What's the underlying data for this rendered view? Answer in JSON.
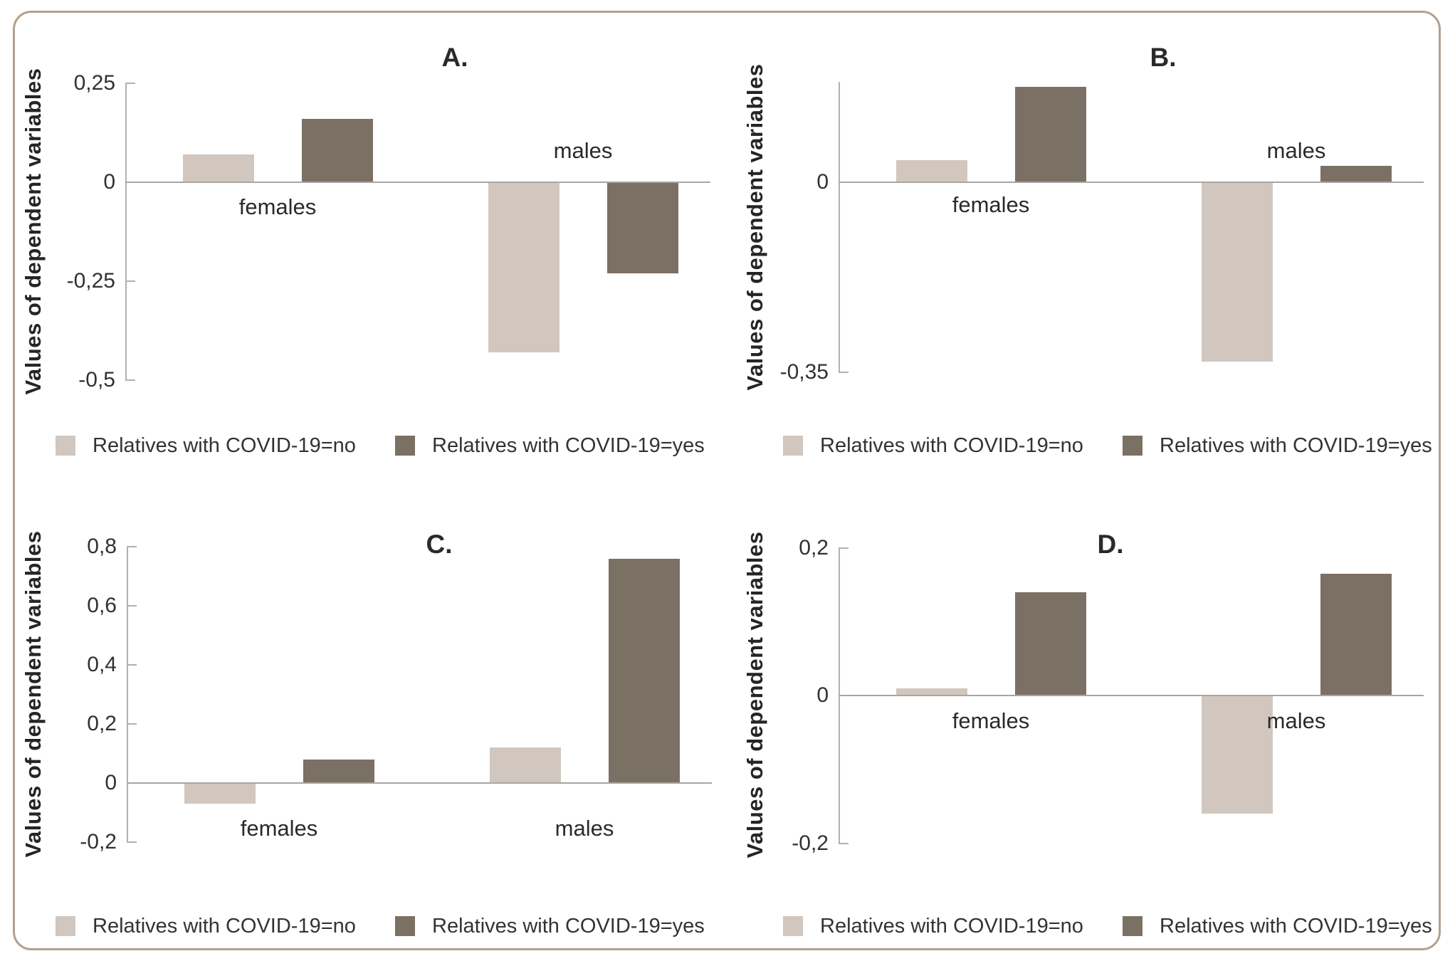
{
  "figure": {
    "border_color": "#b2a08f",
    "background": "#ffffff"
  },
  "colors": {
    "series_no": "#d1c7be",
    "series_yes": "#7b7064",
    "axis_line": "#b3b1af",
    "zero_line": "#a8a6a4",
    "text": "#2c2a28"
  },
  "y_axis_label": "Values of dependent variables",
  "legend": {
    "items": [
      {
        "key": "no",
        "label": "Relatives with COVID-19=no",
        "color": "#d1c7be"
      },
      {
        "key": "yes",
        "label": "Relatives with COVID-19=yes",
        "color": "#7b7064"
      }
    ]
  },
  "chart_data": [
    {
      "id": "A",
      "type": "bar",
      "title": "A.",
      "ylabel": "Values of dependent variables",
      "xlabel": "",
      "categories": [
        "females",
        "males"
      ],
      "series": [
        {
          "name": "Relatives with COVID-19=no",
          "values": [
            0.07,
            -0.43
          ]
        },
        {
          "name": "Relatives with COVID-19=yes",
          "values": [
            0.16,
            -0.23
          ]
        }
      ],
      "ylim": [
        -0.5,
        0.25
      ],
      "yticks": [
        {
          "value": 0.25,
          "label": "0,25"
        },
        {
          "value": 0,
          "label": "0"
        },
        {
          "value": -0.25,
          "label": "-0,25"
        },
        {
          "value": -0.5,
          "label": "-0,5"
        }
      ],
      "grid": false,
      "legend_position": "bottom"
    },
    {
      "id": "B",
      "type": "bar",
      "title": "B.",
      "ylabel": "Values of dependent variables",
      "xlabel": "",
      "categories": [
        "females",
        "males"
      ],
      "series": [
        {
          "name": "Relatives with COVID-19=no",
          "values": [
            0.04,
            -0.33
          ]
        },
        {
          "name": "Relatives with COVID-19=yes",
          "values": [
            0.175,
            0.03
          ]
        }
      ],
      "ylim": [
        -0.35,
        0.185
      ],
      "yticks": [
        {
          "value": 0,
          "label": "0"
        },
        {
          "value": -0.35,
          "label": "-0,35"
        }
      ],
      "grid": false,
      "legend_position": "bottom"
    },
    {
      "id": "C",
      "type": "bar",
      "title": "C.",
      "ylabel": "Values of dependent variables",
      "xlabel": "",
      "categories": [
        "females",
        "males"
      ],
      "series": [
        {
          "name": "Relatives with COVID-19=no",
          "values": [
            -0.07,
            0.12
          ]
        },
        {
          "name": "Relatives with COVID-19=yes",
          "values": [
            0.08,
            0.76
          ]
        }
      ],
      "ylim": [
        -0.2,
        0.8
      ],
      "yticks": [
        {
          "value": 0.8,
          "label": "0,8"
        },
        {
          "value": 0.6,
          "label": "0,6"
        },
        {
          "value": 0.4,
          "label": "0,4"
        },
        {
          "value": 0.2,
          "label": "0,2"
        },
        {
          "value": 0,
          "label": "0"
        },
        {
          "value": -0.2,
          "label": "-0,2"
        }
      ],
      "grid": false,
      "legend_position": "bottom"
    },
    {
      "id": "D",
      "type": "bar",
      "title": "D.",
      "ylabel": "Values of dependent variables",
      "xlabel": "",
      "categories": [
        "females",
        "males"
      ],
      "series": [
        {
          "name": "Relatives with COVID-19=no",
          "values": [
            0.01,
            -0.16
          ]
        },
        {
          "name": "Relatives with COVID-19=yes",
          "values": [
            0.14,
            0.165
          ]
        }
      ],
      "ylim": [
        -0.2,
        0.2
      ],
      "yticks": [
        {
          "value": 0.2,
          "label": "0,2"
        },
        {
          "value": 0,
          "label": "0"
        },
        {
          "value": -0.2,
          "label": "-0,2"
        }
      ],
      "grid": false,
      "legend_position": "bottom"
    }
  ]
}
